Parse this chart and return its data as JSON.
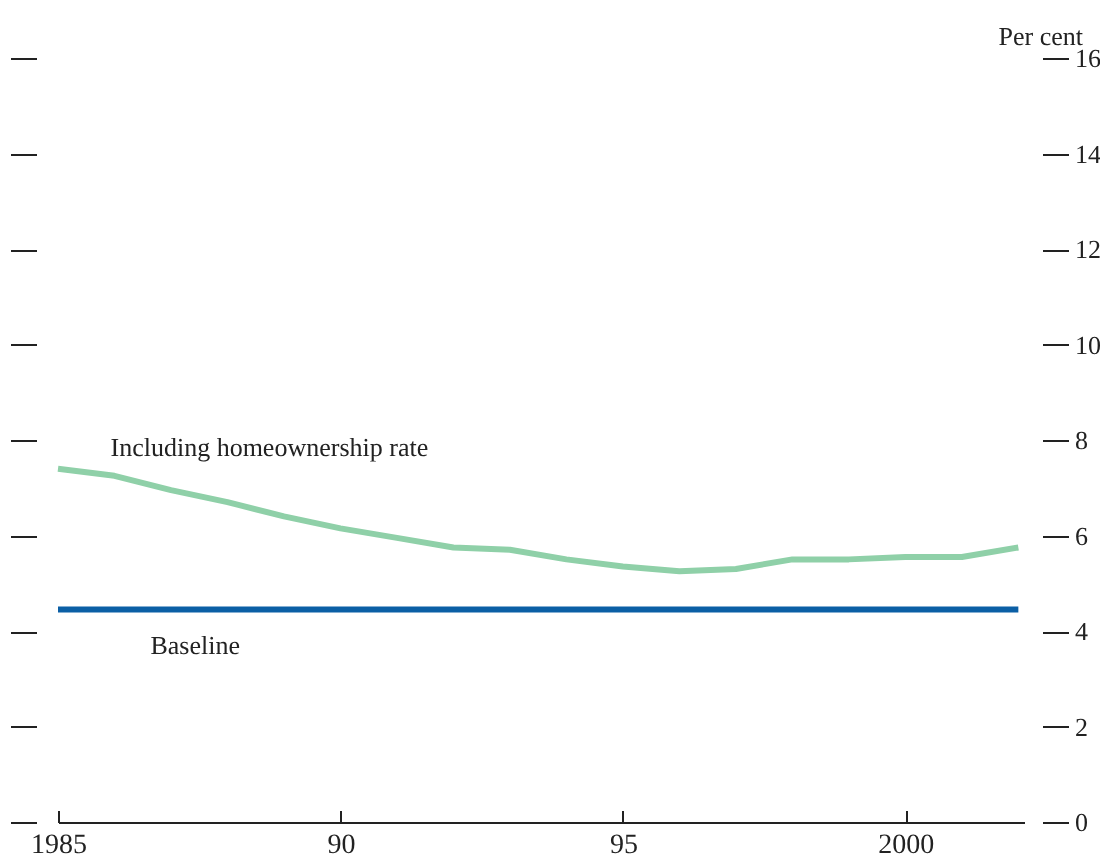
{
  "chart_data": {
    "type": "line",
    "ylabel": "Per cent",
    "x": [
      1985,
      1986,
      1987,
      1988,
      1989,
      1990,
      1991,
      1992,
      1993,
      1994,
      1995,
      1996,
      1997,
      1998,
      1999,
      2000,
      2001,
      2002
    ],
    "series": [
      {
        "name": "Including homeownership rate",
        "color": "#8fd0a8",
        "values": [
          7.4,
          7.25,
          6.95,
          6.7,
          6.4,
          6.15,
          5.95,
          5.75,
          5.7,
          5.5,
          5.35,
          5.25,
          5.3,
          5.5,
          5.5,
          5.55,
          5.55,
          5.75
        ]
      },
      {
        "name": "Baseline",
        "color": "#0b5fa5",
        "values": [
          4.45,
          4.45,
          4.45,
          4.45,
          4.45,
          4.45,
          4.45,
          4.45,
          4.45,
          4.45,
          4.45,
          4.45,
          4.45,
          4.45,
          4.45,
          4.45,
          4.45,
          4.45
        ]
      }
    ],
    "xlim": [
      1985,
      2002.1
    ],
    "xticks": [
      1985,
      {
        "value": 1990,
        "label": "90"
      },
      {
        "value": 1995,
        "label": "95"
      },
      2000
    ],
    "ylim": [
      0,
      16
    ],
    "yticks": [
      0,
      2,
      4,
      6,
      8,
      10,
      12,
      14,
      16
    ],
    "grid": false,
    "legend": false,
    "line_style": "solid",
    "marker": "none"
  }
}
